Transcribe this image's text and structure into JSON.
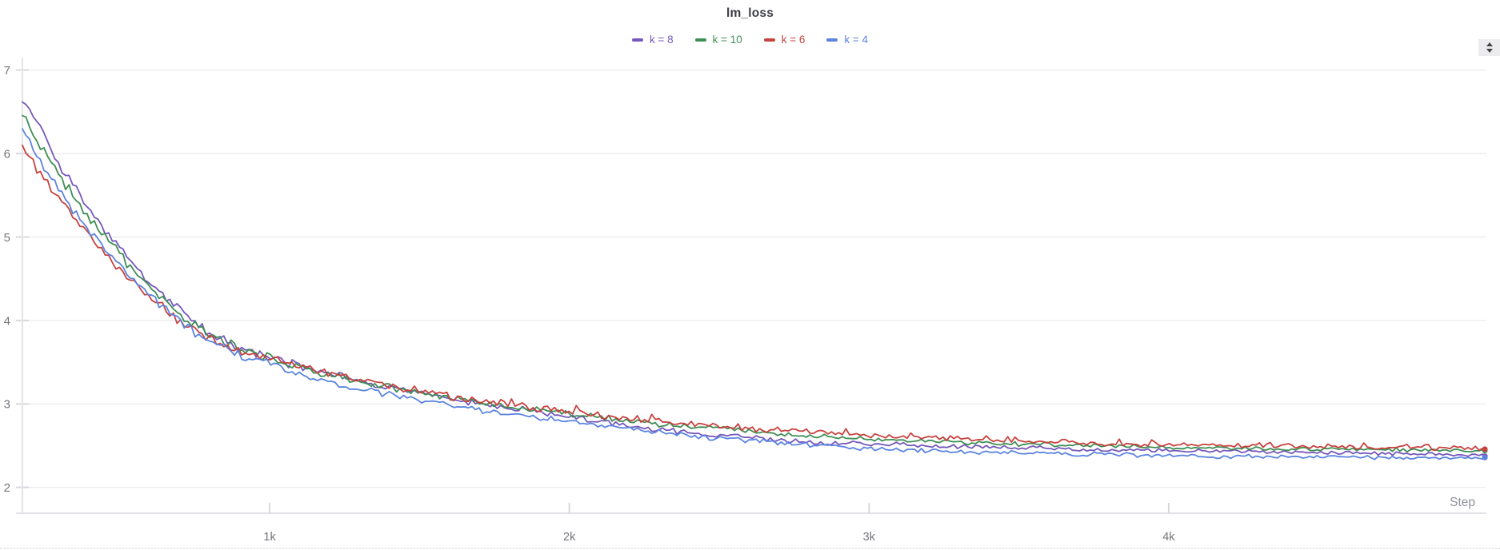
{
  "panel": {
    "icons": {
      "stepper_up": "triangle-up",
      "stepper_down": "triangle-down"
    }
  },
  "chart_data": {
    "type": "line",
    "title": "lm_loss",
    "xlabel": "Step",
    "ylabel": "",
    "grid": "horizontal-only",
    "legend_position": "top-center",
    "x_axis": {
      "label": "Step",
      "min": 175,
      "max": 5060,
      "ticks": [
        {
          "label": "1k",
          "value": 1000
        },
        {
          "label": "2k",
          "value": 2000
        },
        {
          "label": "3k",
          "value": 3000
        },
        {
          "label": "4k",
          "value": 4000
        }
      ]
    },
    "y_axis": {
      "min": 1.69,
      "max": 7.15,
      "ticks": [
        {
          "label": "7",
          "value": 7
        },
        {
          "label": "6",
          "value": 6
        },
        {
          "label": "5",
          "value": 5
        },
        {
          "label": "4",
          "value": 4
        },
        {
          "label": "3",
          "value": 3
        },
        {
          "label": "2",
          "value": 2
        }
      ]
    },
    "noise": {
      "base_amplitude": 0.05,
      "reference_step": 800,
      "decay_exponent": 0.55,
      "spike_amplitude": 0.3,
      "spike_threshold": 0.78
    },
    "colors": {
      "grid": "#ebebee",
      "axis": "#e3e3e7",
      "tick": "#d8d8dd",
      "tick_label": "#74767d",
      "step_label": "#90929a",
      "title": "#3b3d44"
    },
    "series": [
      {
        "id": "k8",
        "name": "k = 8",
        "color": "#7558bb",
        "spiky": false,
        "final_value": 2.39,
        "points": [
          [
            175,
            6.68
          ],
          [
            220,
            6.38
          ],
          [
            260,
            6.12
          ],
          [
            300,
            5.86
          ],
          [
            350,
            5.58
          ],
          [
            400,
            5.33
          ],
          [
            450,
            5.1
          ],
          [
            500,
            4.88
          ],
          [
            550,
            4.67
          ],
          [
            600,
            4.47
          ],
          [
            650,
            4.28
          ],
          [
            700,
            4.12
          ],
          [
            750,
            3.98
          ],
          [
            800,
            3.86
          ],
          [
            850,
            3.76
          ],
          [
            900,
            3.68
          ],
          [
            950,
            3.62
          ],
          [
            1000,
            3.56
          ],
          [
            1100,
            3.45
          ],
          [
            1200,
            3.36
          ],
          [
            1300,
            3.28
          ],
          [
            1400,
            3.2
          ],
          [
            1500,
            3.13
          ],
          [
            1600,
            3.06
          ],
          [
            1700,
            3.0
          ],
          [
            1800,
            2.95
          ],
          [
            1900,
            2.9
          ],
          [
            2000,
            2.85
          ],
          [
            2100,
            2.79
          ],
          [
            2200,
            2.74
          ],
          [
            2300,
            2.69
          ],
          [
            2400,
            2.65
          ],
          [
            2500,
            2.62
          ],
          [
            2600,
            2.59
          ],
          [
            2700,
            2.56
          ],
          [
            2800,
            2.54
          ],
          [
            2900,
            2.53
          ],
          [
            3000,
            2.52
          ],
          [
            3200,
            2.5
          ],
          [
            3400,
            2.48
          ],
          [
            3600,
            2.47
          ],
          [
            3800,
            2.45
          ],
          [
            4000,
            2.44
          ],
          [
            4200,
            2.43
          ],
          [
            4400,
            2.42
          ],
          [
            4600,
            2.41
          ],
          [
            4800,
            2.4
          ],
          [
            5000,
            2.39
          ],
          [
            5055,
            2.39
          ]
        ]
      },
      {
        "id": "k10",
        "name": "k = 10",
        "color": "#3f8e54",
        "spiky": false,
        "final_value": 2.44,
        "points": [
          [
            175,
            6.5
          ],
          [
            220,
            6.2
          ],
          [
            260,
            5.97
          ],
          [
            300,
            5.73
          ],
          [
            350,
            5.46
          ],
          [
            400,
            5.22
          ],
          [
            450,
            5.0
          ],
          [
            500,
            4.79
          ],
          [
            550,
            4.59
          ],
          [
            600,
            4.41
          ],
          [
            650,
            4.24
          ],
          [
            700,
            4.08
          ],
          [
            750,
            3.95
          ],
          [
            800,
            3.84
          ],
          [
            850,
            3.74
          ],
          [
            900,
            3.66
          ],
          [
            950,
            3.6
          ],
          [
            1000,
            3.55
          ],
          [
            1100,
            3.44
          ],
          [
            1200,
            3.35
          ],
          [
            1300,
            3.27
          ],
          [
            1400,
            3.2
          ],
          [
            1500,
            3.13
          ],
          [
            1600,
            3.07
          ],
          [
            1700,
            3.02
          ],
          [
            1800,
            2.97
          ],
          [
            1900,
            2.92
          ],
          [
            2000,
            2.88
          ],
          [
            2100,
            2.84
          ],
          [
            2200,
            2.8
          ],
          [
            2300,
            2.76
          ],
          [
            2400,
            2.73
          ],
          [
            2500,
            2.7
          ],
          [
            2600,
            2.67
          ],
          [
            2700,
            2.64
          ],
          [
            2800,
            2.62
          ],
          [
            2900,
            2.6
          ],
          [
            3000,
            2.58
          ],
          [
            3200,
            2.55
          ],
          [
            3400,
            2.53
          ],
          [
            3600,
            2.51
          ],
          [
            3800,
            2.5
          ],
          [
            4000,
            2.48
          ],
          [
            4200,
            2.47
          ],
          [
            4400,
            2.46
          ],
          [
            4600,
            2.46
          ],
          [
            4800,
            2.45
          ],
          [
            5000,
            2.44
          ],
          [
            5055,
            2.44
          ]
        ]
      },
      {
        "id": "k6",
        "name": "k = 6",
        "color": "#c7423e",
        "spiky": true,
        "final_value": 2.46,
        "points": [
          [
            175,
            6.08
          ],
          [
            220,
            5.84
          ],
          [
            260,
            5.65
          ],
          [
            300,
            5.45
          ],
          [
            350,
            5.22
          ],
          [
            400,
            5.0
          ],
          [
            450,
            4.8
          ],
          [
            500,
            4.61
          ],
          [
            550,
            4.44
          ],
          [
            600,
            4.28
          ],
          [
            650,
            4.13
          ],
          [
            700,
            4.0
          ],
          [
            750,
            3.89
          ],
          [
            800,
            3.79
          ],
          [
            850,
            3.71
          ],
          [
            900,
            3.65
          ],
          [
            950,
            3.6
          ],
          [
            1000,
            3.56
          ],
          [
            1100,
            3.46
          ],
          [
            1200,
            3.37
          ],
          [
            1300,
            3.29
          ],
          [
            1400,
            3.22
          ],
          [
            1500,
            3.15
          ],
          [
            1600,
            3.09
          ],
          [
            1700,
            3.03
          ],
          [
            1800,
            2.98
          ],
          [
            1900,
            2.93
          ],
          [
            2000,
            2.89
          ],
          [
            2100,
            2.85
          ],
          [
            2200,
            2.82
          ],
          [
            2300,
            2.79
          ],
          [
            2400,
            2.76
          ],
          [
            2500,
            2.73
          ],
          [
            2600,
            2.7
          ],
          [
            2700,
            2.68
          ],
          [
            2800,
            2.66
          ],
          [
            2900,
            2.64
          ],
          [
            3000,
            2.62
          ],
          [
            3200,
            2.59
          ],
          [
            3400,
            2.56
          ],
          [
            3600,
            2.54
          ],
          [
            3800,
            2.52
          ],
          [
            4000,
            2.51
          ],
          [
            4200,
            2.5
          ],
          [
            4400,
            2.49
          ],
          [
            4600,
            2.48
          ],
          [
            4800,
            2.47
          ],
          [
            5000,
            2.46
          ],
          [
            5055,
            2.46
          ]
        ]
      },
      {
        "id": "k4",
        "name": "k = 4",
        "color": "#5b84e0",
        "spiky": false,
        "final_value": 2.35,
        "points": [
          [
            175,
            6.3
          ],
          [
            220,
            6.0
          ],
          [
            260,
            5.78
          ],
          [
            300,
            5.55
          ],
          [
            350,
            5.3
          ],
          [
            400,
            5.07
          ],
          [
            450,
            4.85
          ],
          [
            500,
            4.65
          ],
          [
            550,
            4.46
          ],
          [
            600,
            4.29
          ],
          [
            650,
            4.13
          ],
          [
            700,
            3.99
          ],
          [
            750,
            3.87
          ],
          [
            800,
            3.76
          ],
          [
            850,
            3.67
          ],
          [
            900,
            3.59
          ],
          [
            950,
            3.53
          ],
          [
            1000,
            3.47
          ],
          [
            1100,
            3.36
          ],
          [
            1200,
            3.27
          ],
          [
            1300,
            3.19
          ],
          [
            1400,
            3.11
          ],
          [
            1500,
            3.04
          ],
          [
            1600,
            2.98
          ],
          [
            1700,
            2.93
          ],
          [
            1800,
            2.88
          ],
          [
            1900,
            2.83
          ],
          [
            2000,
            2.79
          ],
          [
            2100,
            2.74
          ],
          [
            2200,
            2.7
          ],
          [
            2300,
            2.66
          ],
          [
            2400,
            2.62
          ],
          [
            2500,
            2.59
          ],
          [
            2600,
            2.56
          ],
          [
            2700,
            2.53
          ],
          [
            2800,
            2.51
          ],
          [
            2900,
            2.49
          ],
          [
            3000,
            2.47
          ],
          [
            3200,
            2.44
          ],
          [
            3400,
            2.42
          ],
          [
            3600,
            2.41
          ],
          [
            3800,
            2.39
          ],
          [
            4000,
            2.38
          ],
          [
            4200,
            2.37
          ],
          [
            4400,
            2.37
          ],
          [
            4600,
            2.36
          ],
          [
            4800,
            2.36
          ],
          [
            5000,
            2.35
          ],
          [
            5055,
            2.35
          ]
        ]
      }
    ]
  }
}
